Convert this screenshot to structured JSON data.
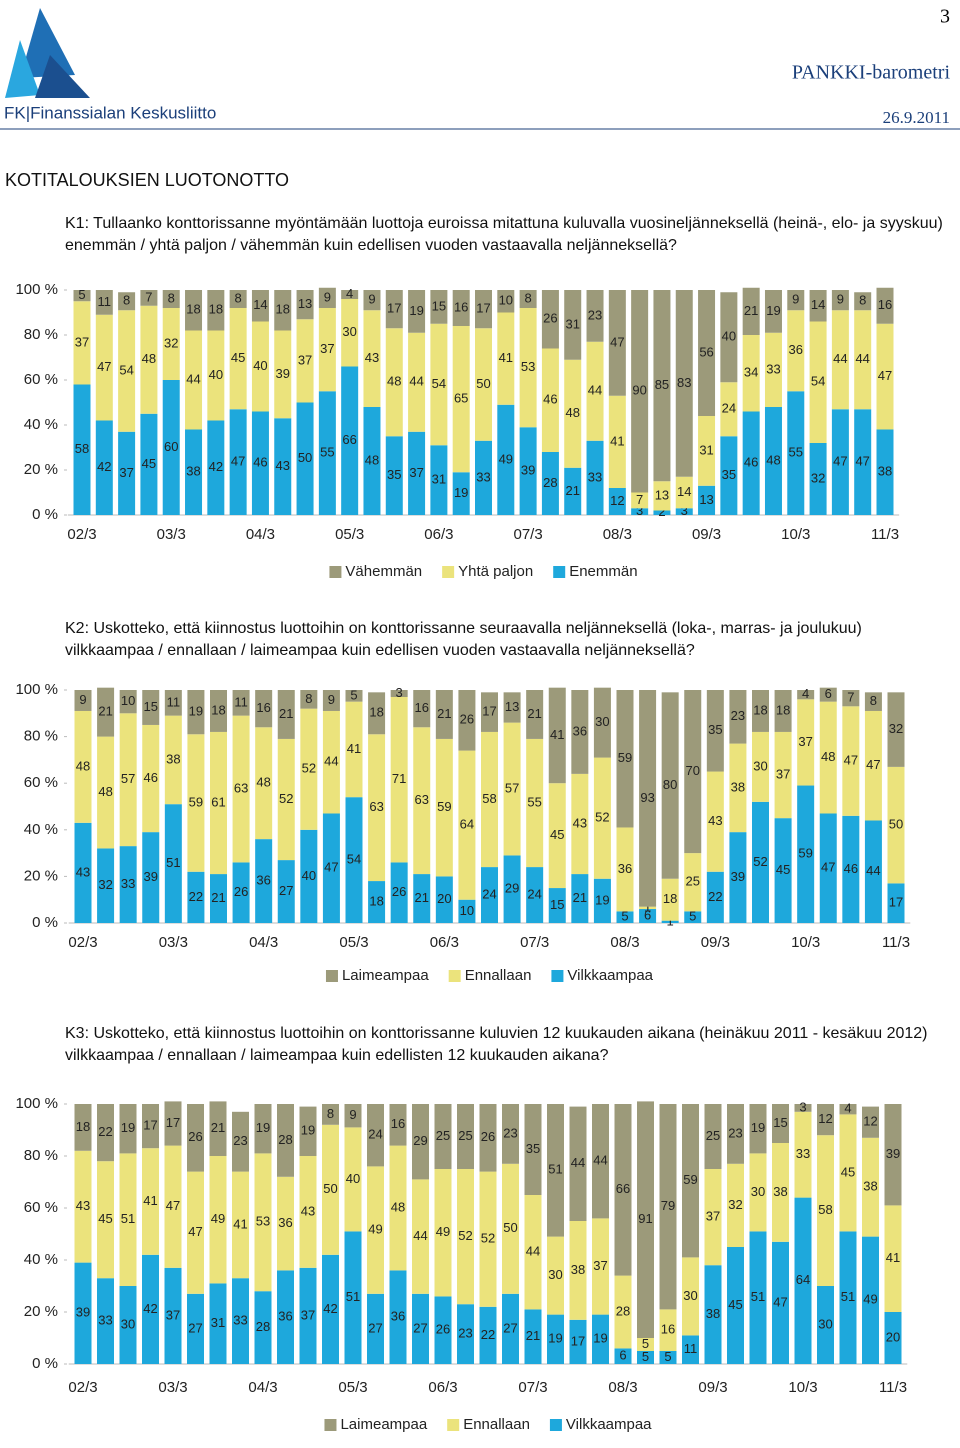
{
  "header": {
    "logo": "FK|Finanssialan Keskusliitto",
    "page_number": "3",
    "publication": "PANKKI-barometri",
    "date": "26.9.2011"
  },
  "title": "KOTITALOUKSIEN LUOTONOTTO",
  "questions": [
    "K1: Tullaanko konttorissanne myöntämään luottoja euroissa mitattuna kuluvalla vuosineljänneksellä (heinä-, elo- ja syyskuu) enemmän / yhtä paljon / vähemmän kuin edellisen vuoden vastaavalla neljänneksellä?",
    "K2: Uskotteko, että kiinnostus luottoihin on konttorissanne seuraavalla neljänneksellä (loka-, marras- ja joulukuu) vilkkaampaa / ennallaan / laimeampaa kuin edellisen vuoden vastaavalla neljänneksellä?",
    "K3: Uskotteko, että kiinnostus luottoihin on konttorissanne kuluvien 12 kuukauden aikana (heinäkuu 2011 - kesäkuu 2012) vilkkaampaa / ennallaan / laimeampaa kuin edellisten 12 kuukauden aikana?"
  ],
  "chart_data": [
    {
      "type": "stacked-bar",
      "categories": [
        "02/3",
        null,
        null,
        null,
        "03/3",
        null,
        null,
        null,
        "04/3",
        null,
        null,
        null,
        "05/3",
        null,
        null,
        null,
        "06/3",
        null,
        null,
        null,
        "07/3",
        null,
        null,
        null,
        "08/3",
        null,
        null,
        null,
        "09/3",
        null,
        null,
        null,
        "10/3",
        null,
        null,
        null,
        "11/3"
      ],
      "ylim": [
        0,
        100
      ],
      "yticks": [
        {
          "value": 0,
          "label": "0 %"
        },
        {
          "value": 20,
          "label": "20 %"
        },
        {
          "value": 40,
          "label": "40 %"
        },
        {
          "value": 60,
          "label": "60 %"
        },
        {
          "value": 80,
          "label": "80 %"
        },
        {
          "value": 100,
          "label": "100 %"
        }
      ],
      "series": [
        {
          "name": "Vähemmän",
          "color": "#9c9a7a",
          "values": [
            5,
            11,
            8,
            7,
            8,
            18,
            18,
            8,
            14,
            18,
            13,
            9,
            4,
            9,
            17,
            19,
            15,
            16,
            17,
            10,
            8,
            26,
            31,
            23,
            47,
            90,
            85,
            83,
            56,
            40,
            21,
            19,
            9,
            14,
            9,
            8,
            16
          ]
        },
        {
          "name": "Yhtä paljon",
          "color": "#ebe37c",
          "values": [
            37,
            47,
            54,
            48,
            32,
            44,
            40,
            45,
            40,
            39,
            37,
            37,
            30,
            43,
            48,
            44,
            54,
            65,
            50,
            41,
            53,
            46,
            48,
            44,
            41,
            7,
            13,
            14,
            31,
            24,
            34,
            33,
            36,
            54,
            44,
            44,
            47
          ]
        },
        {
          "name": "Enemmän",
          "color": "#1ea8dc",
          "values": [
            58,
            42,
            37,
            45,
            60,
            38,
            42,
            47,
            46,
            43,
            50,
            55,
            66,
            48,
            35,
            37,
            31,
            19,
            33,
            49,
            39,
            28,
            21,
            33,
            12,
            3,
            2,
            3,
            13,
            35,
            46,
            48,
            55,
            32,
            47,
            47,
            38
          ]
        }
      ]
    },
    {
      "type": "stacked-bar",
      "categories": [
        "02/3",
        null,
        null,
        null,
        "03/3",
        null,
        null,
        null,
        "04/3",
        null,
        null,
        null,
        "05/3",
        null,
        null,
        null,
        "06/3",
        null,
        null,
        null,
        "07/3",
        null,
        null,
        null,
        "08/3",
        null,
        null,
        null,
        "09/3",
        null,
        null,
        null,
        "10/3",
        null,
        null,
        null,
        "11/3"
      ],
      "ylim": [
        0,
        100
      ],
      "yticks": [
        {
          "value": 0,
          "label": "0 %"
        },
        {
          "value": 20,
          "label": "20 %"
        },
        {
          "value": 40,
          "label": "40 %"
        },
        {
          "value": 60,
          "label": "60 %"
        },
        {
          "value": 80,
          "label": "80 %"
        },
        {
          "value": 100,
          "label": "100 %"
        }
      ],
      "series": [
        {
          "name": "Laimeampaa",
          "color": "#9c9a7a",
          "values": [
            9,
            21,
            10,
            15,
            11,
            19,
            18,
            11,
            16,
            21,
            8,
            9,
            5,
            18,
            3,
            16,
            21,
            26,
            17,
            13,
            21,
            41,
            36,
            30,
            59,
            93,
            80,
            70,
            35,
            23,
            18,
            18,
            4,
            6,
            7,
            8,
            32
          ]
        },
        {
          "name": "Ennallaan",
          "color": "#ebe37c",
          "values": [
            48,
            48,
            57,
            46,
            38,
            59,
            61,
            63,
            48,
            52,
            52,
            44,
            41,
            63,
            71,
            63,
            59,
            64,
            58,
            57,
            55,
            45,
            43,
            52,
            36,
            1,
            18,
            25,
            43,
            38,
            30,
            37,
            37,
            48,
            47,
            47,
            50
          ]
        },
        {
          "name": "Vilkkaampaa",
          "color": "#1ea8dc",
          "values": [
            43,
            32,
            33,
            39,
            51,
            22,
            21,
            26,
            36,
            27,
            40,
            47,
            54,
            18,
            26,
            21,
            20,
            10,
            24,
            29,
            24,
            15,
            21,
            19,
            5,
            6,
            1,
            5,
            22,
            39,
            52,
            45,
            59,
            47,
            46,
            44,
            17
          ]
        }
      ]
    },
    {
      "type": "stacked-bar",
      "categories": [
        "02/3",
        null,
        null,
        null,
        "03/3",
        null,
        null,
        null,
        "04/3",
        null,
        null,
        null,
        "05/3",
        null,
        null,
        null,
        "06/3",
        null,
        null,
        null,
        "07/3",
        null,
        null,
        null,
        "08/3",
        null,
        null,
        null,
        "09/3",
        null,
        null,
        null,
        "10/3",
        null,
        null,
        null,
        "11/3"
      ],
      "ylim": [
        0,
        100
      ],
      "yticks": [
        {
          "value": 0,
          "label": "0 %"
        },
        {
          "value": 20,
          "label": "20 %"
        },
        {
          "value": 40,
          "label": "40 %"
        },
        {
          "value": 60,
          "label": "60 %"
        },
        {
          "value": 80,
          "label": "80 %"
        },
        {
          "value": 100,
          "label": "100 %"
        }
      ],
      "series": [
        {
          "name": "Laimeampaa",
          "color": "#9c9a7a",
          "values": [
            18,
            22,
            19,
            17,
            17,
            26,
            21,
            23,
            19,
            28,
            19,
            8,
            9,
            24,
            16,
            29,
            25,
            25,
            26,
            23,
            35,
            51,
            44,
            44,
            66,
            91,
            79,
            59,
            25,
            23,
            19,
            15,
            3,
            12,
            4,
            12,
            39
          ]
        },
        {
          "name": "Ennallaan",
          "color": "#ebe37c",
          "values": [
            43,
            45,
            51,
            41,
            47,
            47,
            49,
            41,
            53,
            36,
            43,
            50,
            40,
            49,
            48,
            44,
            49,
            52,
            52,
            50,
            44,
            30,
            38,
            37,
            28,
            5,
            16,
            30,
            37,
            32,
            30,
            38,
            33,
            58,
            45,
            38,
            41
          ]
        },
        {
          "name": "Vilkkaampaa",
          "color": "#1ea8dc",
          "values": [
            39,
            33,
            30,
            42,
            37,
            27,
            31,
            33,
            28,
            36,
            37,
            42,
            51,
            27,
            36,
            27,
            26,
            23,
            22,
            27,
            21,
            19,
            17,
            19,
            6,
            5,
            5,
            11,
            38,
            45,
            51,
            47,
            64,
            30,
            51,
            49,
            20
          ]
        }
      ]
    }
  ]
}
